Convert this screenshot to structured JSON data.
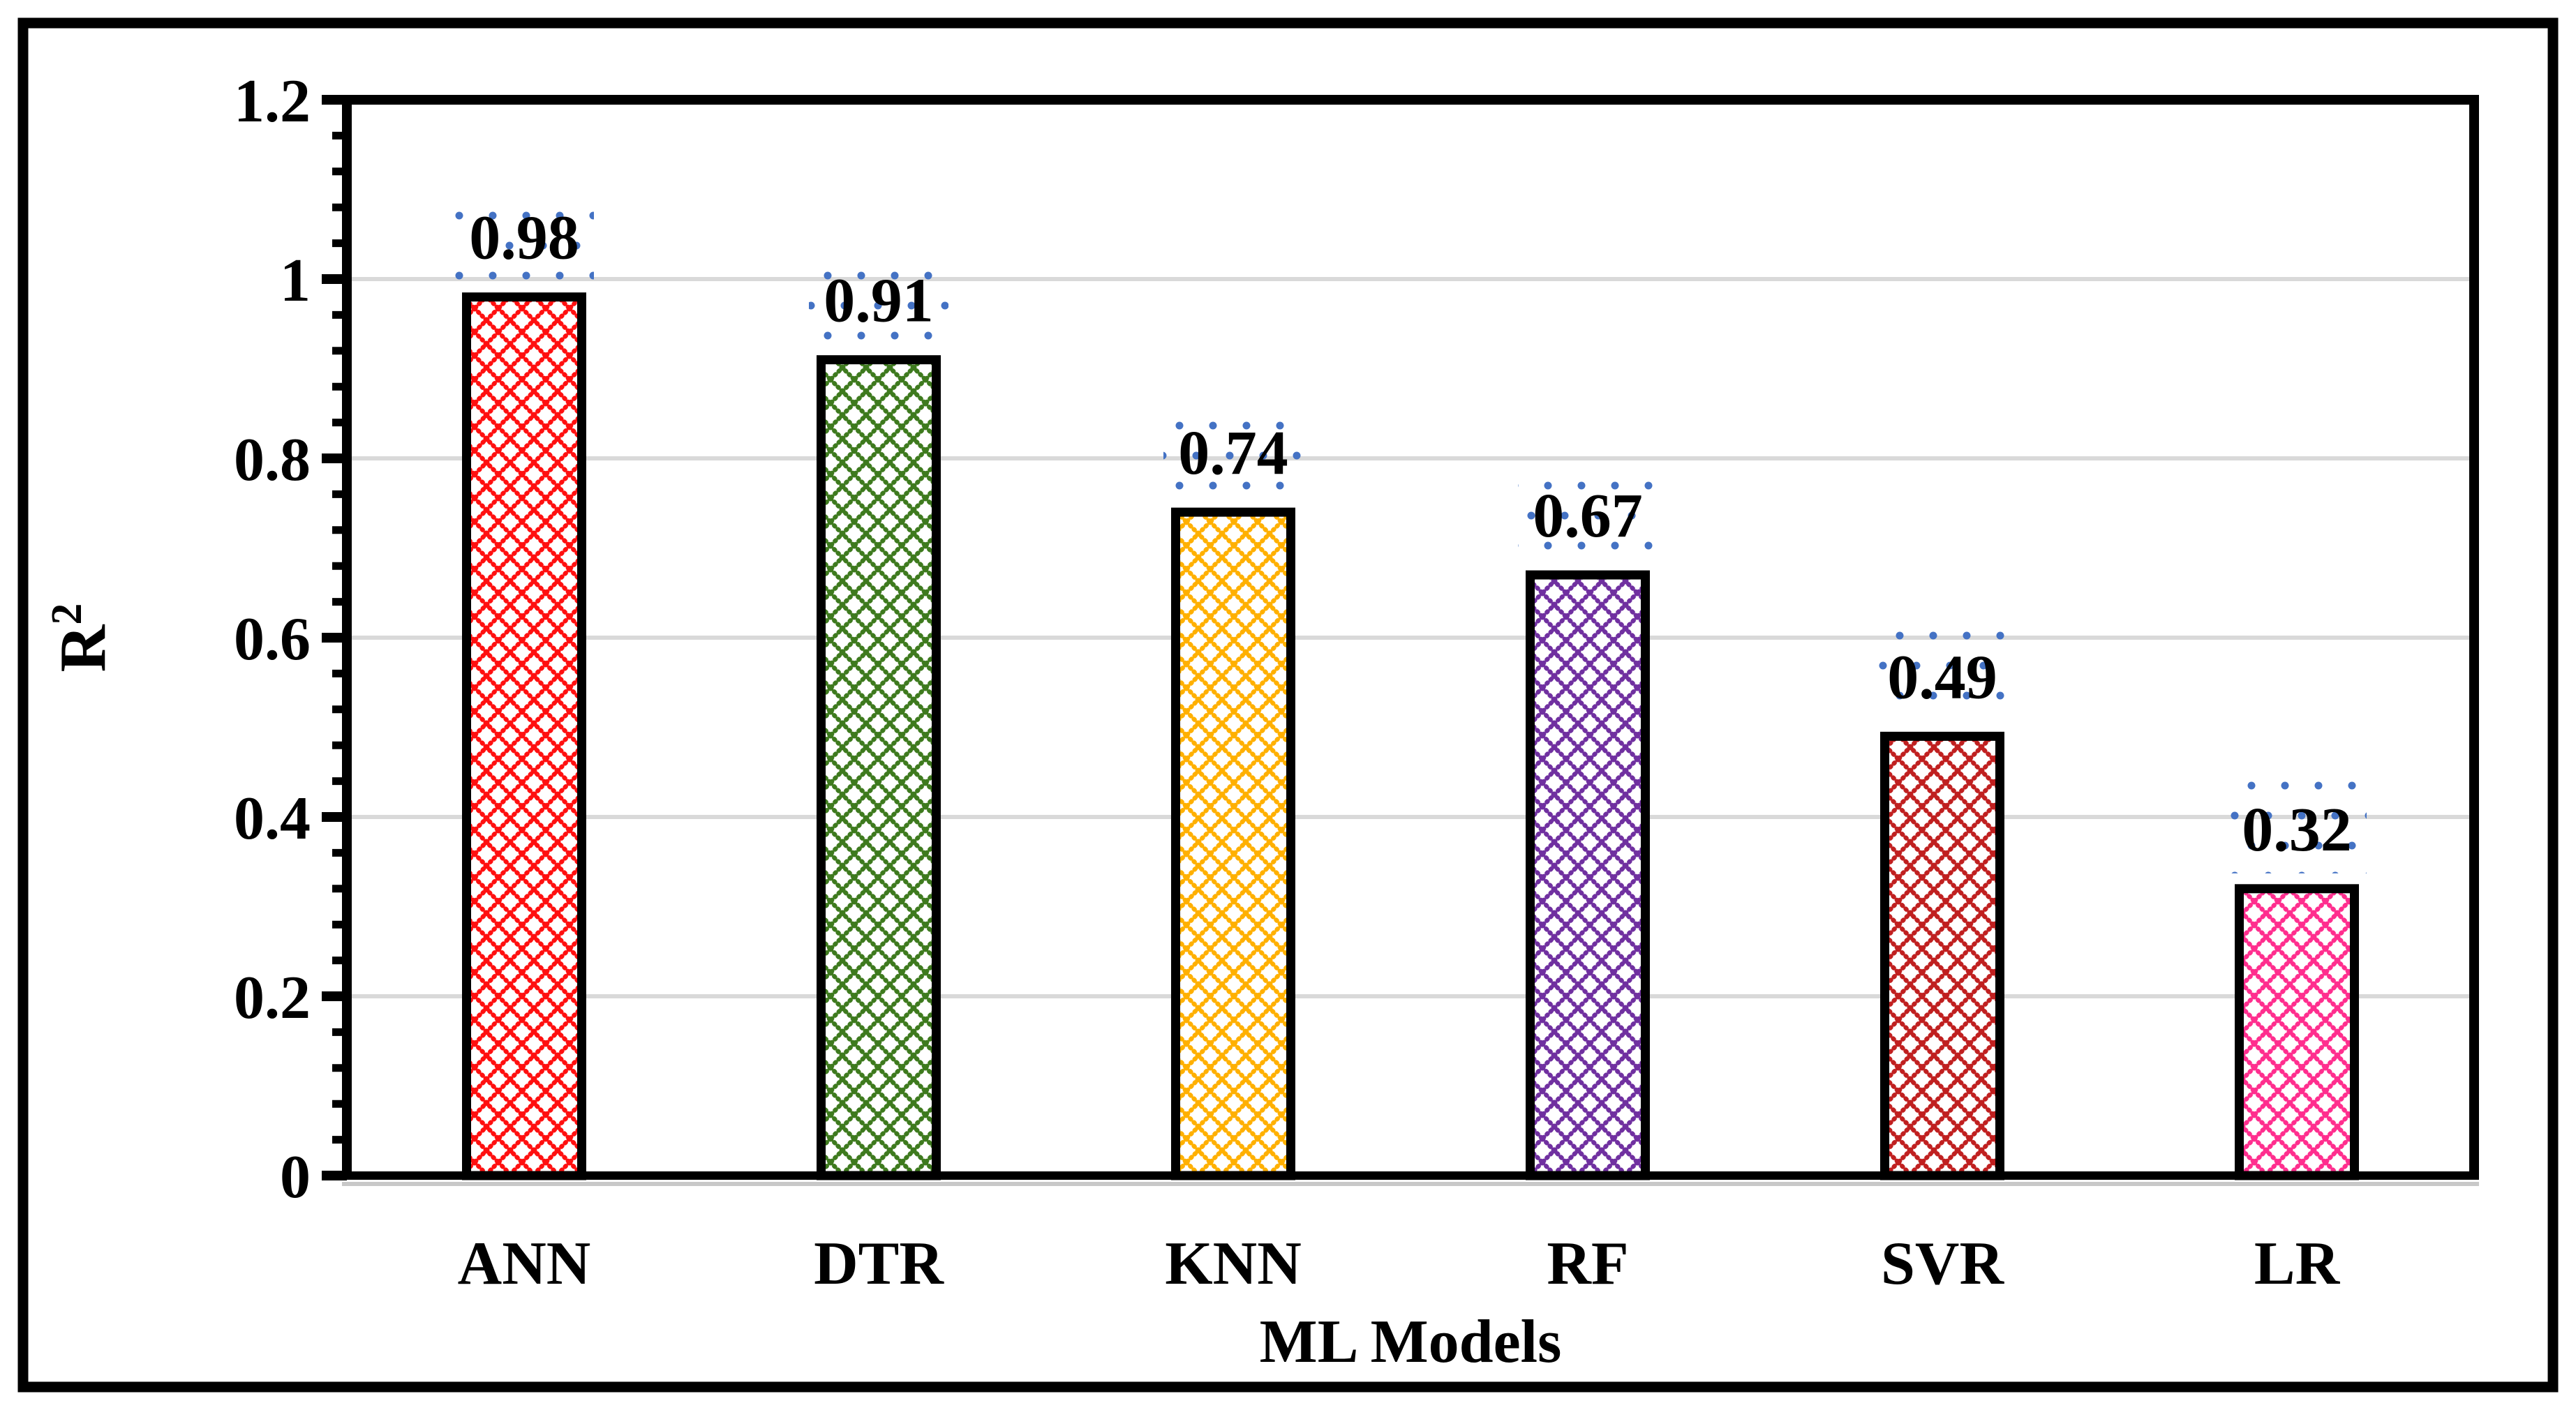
{
  "chart_data": {
    "type": "bar",
    "categories": [
      "ANN",
      "DTR",
      "KNN",
      "RF",
      "SVR",
      "LR"
    ],
    "values": [
      0.98,
      0.91,
      0.74,
      0.67,
      0.49,
      0.32
    ],
    "data_labels": [
      "0.98",
      "0.91",
      "0.74",
      "0.67",
      "0.49",
      "0.32"
    ],
    "bar_colors": [
      "#FF1010",
      "#3E7A1E",
      "#FFB000",
      "#7030A0",
      "#C02020",
      "#FF2E8E"
    ],
    "bar_fill_pattern": "dotted-diamond-crosshatch",
    "bar_border_color": "#000000",
    "title": "",
    "xlabel": "ML Models",
    "ylabel": "R²",
    "ylabel_base": "R",
    "ylabel_superscript": "2",
    "ylim": [
      0,
      1.2
    ],
    "y_major_unit": 0.2,
    "y_minor_unit": 0.04,
    "y_tick_labels": [
      "0",
      "0.2",
      "0.4",
      "0.6",
      "0.8",
      "1",
      "1.2"
    ],
    "grid": true,
    "gridline_color": "#D9D9D9",
    "axis_color": "#000000",
    "frame_color": "#000000",
    "label_selection_dot_color": "#4472C4",
    "legend_position": "none"
  }
}
